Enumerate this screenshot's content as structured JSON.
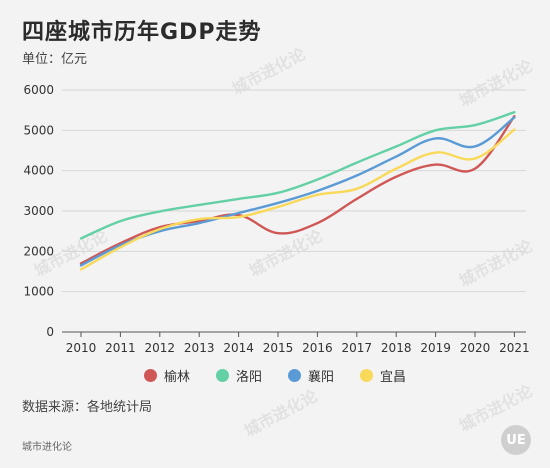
{
  "header": {
    "title": "四座城市历年GDP走势",
    "unit": "单位：亿元"
  },
  "source": "数据来源：各地统计局",
  "brand": "城市进化论",
  "logo_text": "UE",
  "watermark": "城市进化论",
  "colors": {
    "grid": "#d6d6d6",
    "axis": "#555555",
    "tick_text": "#333333"
  },
  "chart_data": {
    "type": "line",
    "title": "四座城市历年GDP走势",
    "ylabel": "单位：亿元",
    "x": [
      2010,
      2011,
      2012,
      2013,
      2014,
      2015,
      2016,
      2017,
      2018,
      2019,
      2020,
      2021
    ],
    "ylim": [
      0,
      6000
    ],
    "yticks": [
      0,
      1000,
      2000,
      3000,
      4000,
      5000,
      6000
    ],
    "grid": true,
    "legend_position": "bottom",
    "series": [
      {
        "name": "榆林",
        "color": "#cf5856",
        "values": [
          1700,
          2200,
          2600,
          2750,
          2900,
          2450,
          2700,
          3300,
          3850,
          4150,
          4050,
          5350
        ]
      },
      {
        "name": "洛阳",
        "color": "#63d0a6",
        "values": [
          2320,
          2750,
          2990,
          3150,
          3300,
          3450,
          3780,
          4200,
          4600,
          5000,
          5130,
          5450
        ]
      },
      {
        "name": "襄阳",
        "color": "#5b9bd5",
        "values": [
          1650,
          2150,
          2500,
          2700,
          2950,
          3200,
          3500,
          3880,
          4350,
          4800,
          4600,
          5320
        ]
      },
      {
        "name": "宜昌",
        "color": "#f9d95a",
        "values": [
          1550,
          2100,
          2550,
          2800,
          2850,
          3100,
          3400,
          3550,
          4050,
          4450,
          4300,
          5020
        ]
      }
    ]
  }
}
